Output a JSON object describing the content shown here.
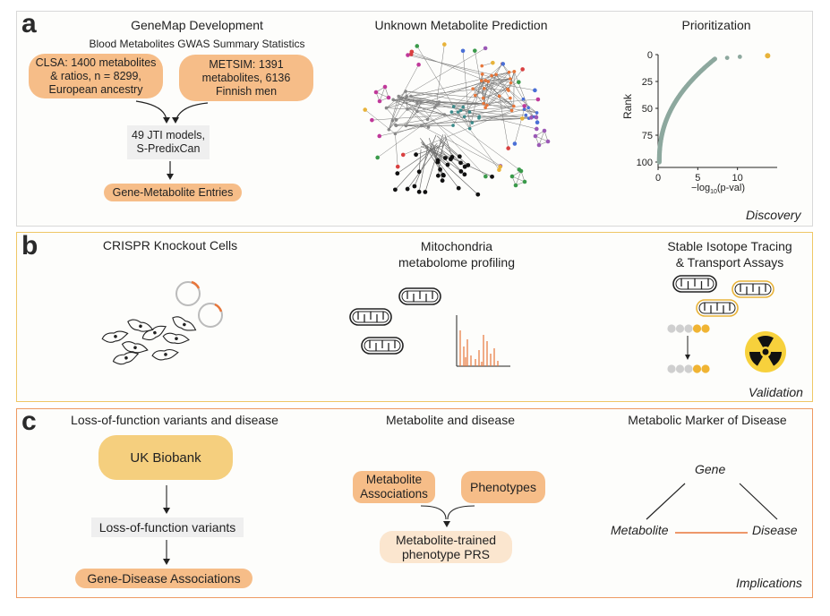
{
  "panel_a": {
    "letter": "a",
    "col1_title": "GeneMap Development",
    "col1_subtitle": "Blood Metabolites GWAS Summary Statistics",
    "clsa": [
      "CLSA: 1400 metabolites",
      "& ratios, n = 8299,",
      "European ancestry"
    ],
    "metsim": [
      "METSIM: 1391",
      "metabolites, 6136",
      "Finnish men"
    ],
    "jti": [
      "49 JTI models,",
      "S-PredixCan"
    ],
    "entries": "Gene-Metabolite Entries",
    "col2_title": "Unknown Metabolite Prediction",
    "col3_title": "Prioritization",
    "rank_label": "Rank",
    "x_label_pre": "−log",
    "x_label_sub": "10",
    "x_label_post": "(p-val)",
    "tag": "Discovery"
  },
  "chart_data": {
    "type": "scatter",
    "xlabel": "−log10(p-val)",
    "ylabel": "Rank",
    "xlim": [
      0,
      15
    ],
    "ylim": [
      0,
      105
    ],
    "y_inverted": true,
    "x_ticks": [
      "0",
      "5",
      "10"
    ],
    "y_ticks": [
      "0",
      "25",
      "50",
      "75",
      "100"
    ],
    "highlight": {
      "x": 13.8,
      "y": 1,
      "color": "#e8b33a"
    },
    "outliers": [
      {
        "x": 10.3,
        "y": 2
      },
      {
        "x": 8.7,
        "y": 3
      }
    ],
    "point_color": "#8da89e",
    "n_points": 100
  },
  "panel_b": {
    "letter": "b",
    "col1_title": "CRISPR Knockout Cells",
    "col2_title": [
      "Mitochondria",
      "metabolome profiling"
    ],
    "col3_title": [
      "Stable Isotope Tracing",
      "& Transport Assays"
    ],
    "tag": "Validation"
  },
  "panel_c": {
    "letter": "c",
    "col1_title": "Loss-of-function variants and disease",
    "ukb": "UK Biobank",
    "lof": "Loss-of-function variants",
    "gda": "Gene-Disease Associations",
    "col2_title": "Metabolite and disease",
    "met_assoc": [
      "Metabolite",
      "Associations"
    ],
    "phenotypes": "Phenotypes",
    "prs": [
      "Metabolite-trained",
      "phenotype PRS"
    ],
    "col3_title": "Metabolic Marker of Disease",
    "gene": "Gene",
    "metabolite": "Metabolite",
    "disease": "Disease",
    "tag": "Implications"
  }
}
